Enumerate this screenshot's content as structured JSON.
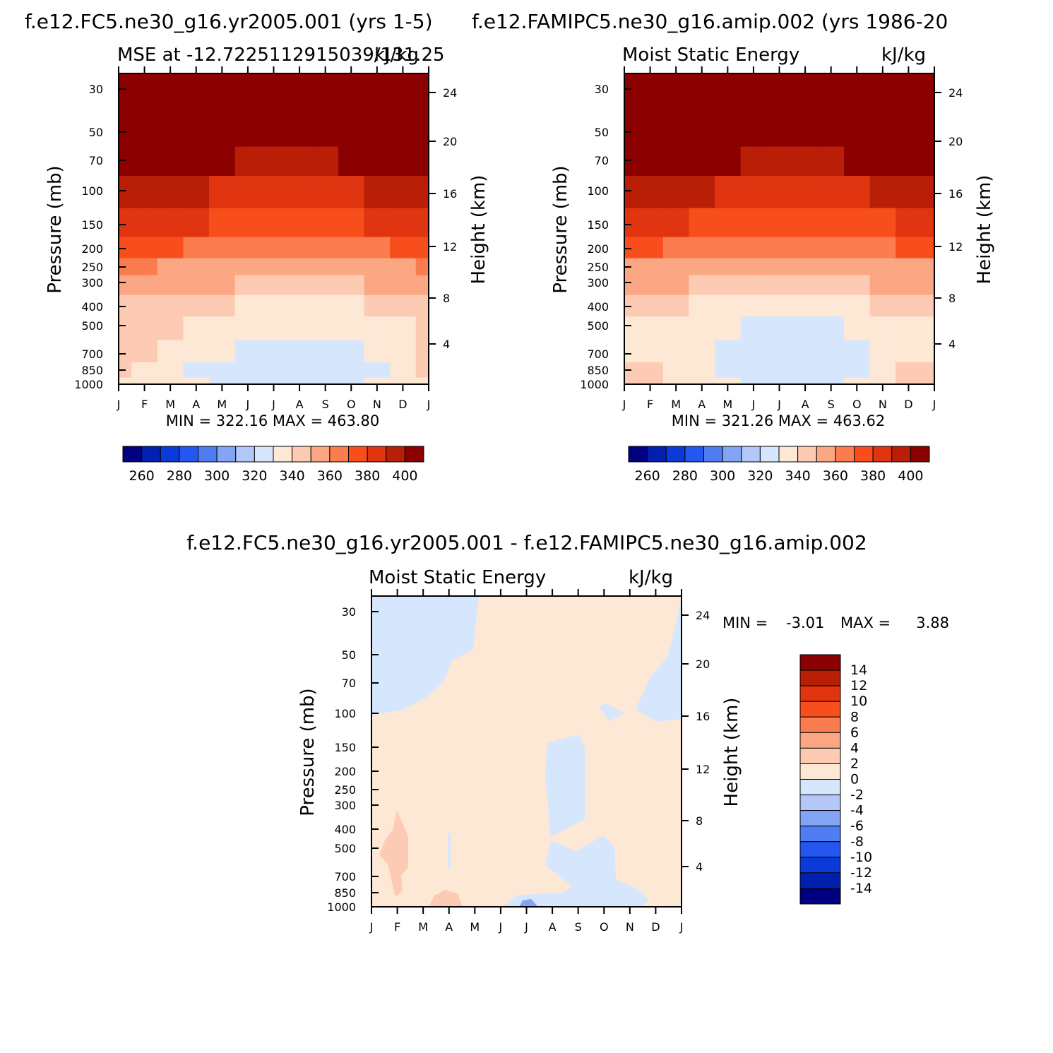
{
  "chart_data": [
    {
      "type": "heatmap",
      "panel_id": "case1",
      "case_title": "f.e12.FC5.ne30_g16.yr2005.001 (yrs 1-5)",
      "title": "MSE at -12.7225112915039/131.25",
      "units": "kJ/kg",
      "ylabel": "Pressure (mb)",
      "ylabel_right": "Height (km)",
      "pressure_ticks": [
        "30",
        "50",
        "70",
        "100",
        "150",
        "200",
        "250",
        "300",
        "400",
        "500",
        "700",
        "850",
        "1000"
      ],
      "height_ticks": [
        "4",
        "8",
        "12",
        "16",
        "20",
        "24"
      ],
      "months": [
        "J",
        "F",
        "M",
        "A",
        "M",
        "J",
        "J",
        "A",
        "S",
        "O",
        "N",
        "D",
        "J"
      ],
      "stats": "MIN =  322.16  MAX =  463.80",
      "colorbar_labels": [
        "260",
        "280",
        "300",
        "320",
        "340",
        "360",
        "380",
        "400"
      ],
      "colorbar_colors": [
        "#000080",
        "#0220b0",
        "#0a3ad8",
        "#2457f0",
        "#4f7ef2",
        "#83a4f4",
        "#b3c8f8",
        "#d6e7fd",
        "#fde8d6",
        "#fdcbb3",
        "#fca783",
        "#fb7c4e",
        "#f84e1c",
        "#e03510",
        "#b81f06",
        "#8b0000"
      ],
      "levels_p": [
        1000,
        850,
        700,
        500,
        400,
        300,
        250,
        200,
        150,
        100,
        70,
        50,
        30
      ],
      "levels_ranges": [
        {
          "values": "band index per month",
          "note": "filled contour bands"
        }
      ],
      "contour_bands_by_month": [
        [
          8,
          9,
          9,
          9,
          9,
          10,
          11,
          12,
          13,
          14,
          15,
          15,
          15
        ],
        [
          8,
          8,
          9,
          9,
          9,
          10,
          11,
          12,
          13,
          14,
          15,
          15,
          15
        ],
        [
          8,
          8,
          8,
          9,
          9,
          10,
          10,
          12,
          13,
          14,
          15,
          15,
          15
        ],
        [
          8,
          7,
          8,
          8,
          9,
          10,
          10,
          11,
          13,
          14,
          15,
          15,
          15
        ],
        [
          7,
          7,
          8,
          8,
          9,
          10,
          10,
          11,
          12,
          13,
          15,
          15,
          15
        ],
        [
          7,
          7,
          7,
          8,
          8,
          9,
          10,
          11,
          12,
          13,
          14,
          15,
          15
        ],
        [
          7,
          7,
          7,
          8,
          8,
          9,
          10,
          11,
          12,
          13,
          14,
          15,
          15
        ],
        [
          7,
          7,
          7,
          8,
          8,
          9,
          10,
          11,
          12,
          13,
          14,
          15,
          15
        ],
        [
          7,
          7,
          7,
          8,
          8,
          9,
          10,
          11,
          12,
          13,
          14,
          15,
          15
        ],
        [
          7,
          7,
          7,
          8,
          8,
          9,
          10,
          11,
          12,
          13,
          15,
          15,
          15
        ],
        [
          8,
          7,
          8,
          8,
          9,
          10,
          10,
          11,
          13,
          14,
          15,
          15,
          15
        ],
        [
          8,
          8,
          8,
          8,
          9,
          10,
          10,
          12,
          13,
          14,
          15,
          15,
          15
        ],
        [
          8,
          9,
          9,
          9,
          9,
          10,
          11,
          12,
          13,
          14,
          15,
          15,
          15
        ]
      ]
    },
    {
      "type": "heatmap",
      "panel_id": "case2",
      "case_title": "f.e12.FAMIPC5.ne30_g16.amip.002 (yrs 1986-20",
      "title": "Moist Static Energy",
      "units": "kJ/kg",
      "ylabel": "Pressure (mb)",
      "ylabel_right": "Height (km)",
      "pressure_ticks": [
        "30",
        "50",
        "70",
        "100",
        "150",
        "200",
        "250",
        "300",
        "400",
        "500",
        "700",
        "850",
        "1000"
      ],
      "height_ticks": [
        "4",
        "8",
        "12",
        "16",
        "20",
        "24"
      ],
      "months": [
        "J",
        "F",
        "M",
        "A",
        "M",
        "J",
        "J",
        "A",
        "S",
        "O",
        "N",
        "D",
        "J"
      ],
      "stats": "MIN =  321.26  MAX =  463.62",
      "colorbar_labels": [
        "260",
        "280",
        "300",
        "320",
        "340",
        "360",
        "380",
        "400"
      ],
      "colorbar_colors": [
        "#000080",
        "#0220b0",
        "#0a3ad8",
        "#2457f0",
        "#4f7ef2",
        "#83a4f4",
        "#b3c8f8",
        "#d6e7fd",
        "#fde8d6",
        "#fdcbb3",
        "#fca783",
        "#fb7c4e",
        "#f84e1c",
        "#e03510",
        "#b81f06",
        "#8b0000"
      ],
      "levels_p": [
        1000,
        850,
        700,
        500,
        400,
        300,
        250,
        200,
        150,
        100,
        70,
        50,
        30
      ],
      "contour_bands_by_month": [
        [
          9,
          9,
          8,
          8,
          9,
          10,
          10,
          12,
          13,
          14,
          15,
          15,
          15
        ],
        [
          9,
          9,
          8,
          8,
          9,
          10,
          10,
          12,
          13,
          14,
          15,
          15,
          15
        ],
        [
          8,
          8,
          8,
          8,
          9,
          10,
          10,
          11,
          13,
          14,
          15,
          15,
          15
        ],
        [
          8,
          8,
          8,
          8,
          8,
          9,
          10,
          11,
          12,
          14,
          15,
          15,
          15
        ],
        [
          8,
          7,
          7,
          8,
          8,
          9,
          10,
          11,
          12,
          13,
          15,
          15,
          15
        ],
        [
          7,
          7,
          7,
          7,
          8,
          9,
          10,
          11,
          12,
          13,
          14,
          15,
          15
        ],
        [
          7,
          7,
          7,
          7,
          8,
          9,
          10,
          11,
          12,
          13,
          14,
          15,
          15
        ],
        [
          7,
          7,
          7,
          7,
          8,
          9,
          10,
          11,
          12,
          13,
          14,
          15,
          15
        ],
        [
          7,
          7,
          7,
          7,
          8,
          9,
          10,
          11,
          12,
          13,
          14,
          15,
          15
        ],
        [
          8,
          7,
          7,
          8,
          8,
          9,
          10,
          11,
          12,
          13,
          15,
          15,
          15
        ],
        [
          8,
          8,
          8,
          8,
          9,
          10,
          10,
          11,
          12,
          14,
          15,
          15,
          15
        ],
        [
          9,
          9,
          8,
          8,
          9,
          10,
          10,
          12,
          13,
          14,
          15,
          15,
          15
        ],
        [
          9,
          9,
          8,
          8,
          9,
          10,
          10,
          12,
          13,
          14,
          15,
          15,
          15
        ]
      ]
    },
    {
      "type": "heatmap",
      "panel_id": "diff",
      "case_title": "f.e12.FC5.ne30_g16.yr2005.001 - f.e12.FAMIPC5.ne30_g16.amip.002",
      "title": "Moist Static Energy",
      "units": "kJ/kg",
      "ylabel": "Pressure (mb)",
      "ylabel_right": "Height (km)",
      "pressure_ticks": [
        "30",
        "50",
        "70",
        "100",
        "150",
        "200",
        "250",
        "300",
        "400",
        "500",
        "700",
        "850",
        "1000"
      ],
      "height_ticks": [
        "4",
        "8",
        "12",
        "16",
        "20",
        "24"
      ],
      "months": [
        "J",
        "F",
        "M",
        "A",
        "M",
        "J",
        "J",
        "A",
        "S",
        "O",
        "N",
        "D",
        "J"
      ],
      "stats_min_label": "MIN =",
      "stats_min_value": "-3.01",
      "stats_max_label": "MAX =",
      "stats_max_value": "3.88",
      "colorbar_labels": [
        "14",
        "12",
        "10",
        "8",
        "6",
        "4",
        "2",
        "0",
        "-2",
        "-4",
        "-6",
        "-8",
        "-10",
        "-12",
        "-14"
      ],
      "colorbar_colors": [
        "#8b0000",
        "#b81f06",
        "#e03510",
        "#f84e1c",
        "#fb7c4e",
        "#fca783",
        "#fdcbb3",
        "#fde8d6",
        "#d6e7fd",
        "#b3c8f8",
        "#83a4f4",
        "#4f7ef2",
        "#2457f0",
        "#0a3ad8",
        "#0220b0",
        "#000080"
      ]
    }
  ]
}
